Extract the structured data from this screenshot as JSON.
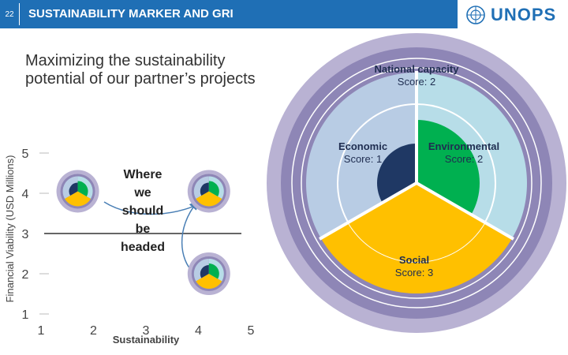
{
  "header": {
    "slide_number": "22",
    "title": "SUSTAINABILITY MARKER AND GRI"
  },
  "logo": {
    "text": "UNOPS",
    "icon": "un-emblem-icon"
  },
  "subtitle": "Maximizing the sustainability potential of our partner’s projects",
  "annotation": "Where we should be headed",
  "colors": {
    "header": "#1f6fb5",
    "ring_outer": "#b9b2d3",
    "ring_purple": "#8e86b6",
    "economic": "#b8cce4",
    "environmental": "#b7dde8",
    "social": "#ffc000",
    "core_economic": "#1f3864",
    "core_environmental": "#00b050"
  },
  "wheel": {
    "national": {
      "title": "National capacity",
      "score": "Score: 2"
    },
    "economic": {
      "title": "Economic",
      "score": "Score: 1"
    },
    "environmental": {
      "title": "Environmental",
      "score": "Score: 2"
    },
    "social": {
      "title": "Social",
      "score": "Score: 3"
    }
  },
  "chart_data": {
    "type": "scatter",
    "title": "",
    "xlabel": "Sustainability",
    "ylabel": "Financial Viability (USD Millions)",
    "x_ticks": [
      "1",
      "2",
      "3",
      "4",
      "5"
    ],
    "y_ticks": [
      "1",
      "2",
      "3",
      "4",
      "5"
    ],
    "xlim": [
      1,
      5
    ],
    "ylim": [
      1,
      5
    ],
    "reference_line_y": 3,
    "points": [
      {
        "x": 1.7,
        "y": 4.05
      },
      {
        "x": 4.2,
        "y": 4.05
      },
      {
        "x": 4.2,
        "y": 2.0
      }
    ]
  }
}
